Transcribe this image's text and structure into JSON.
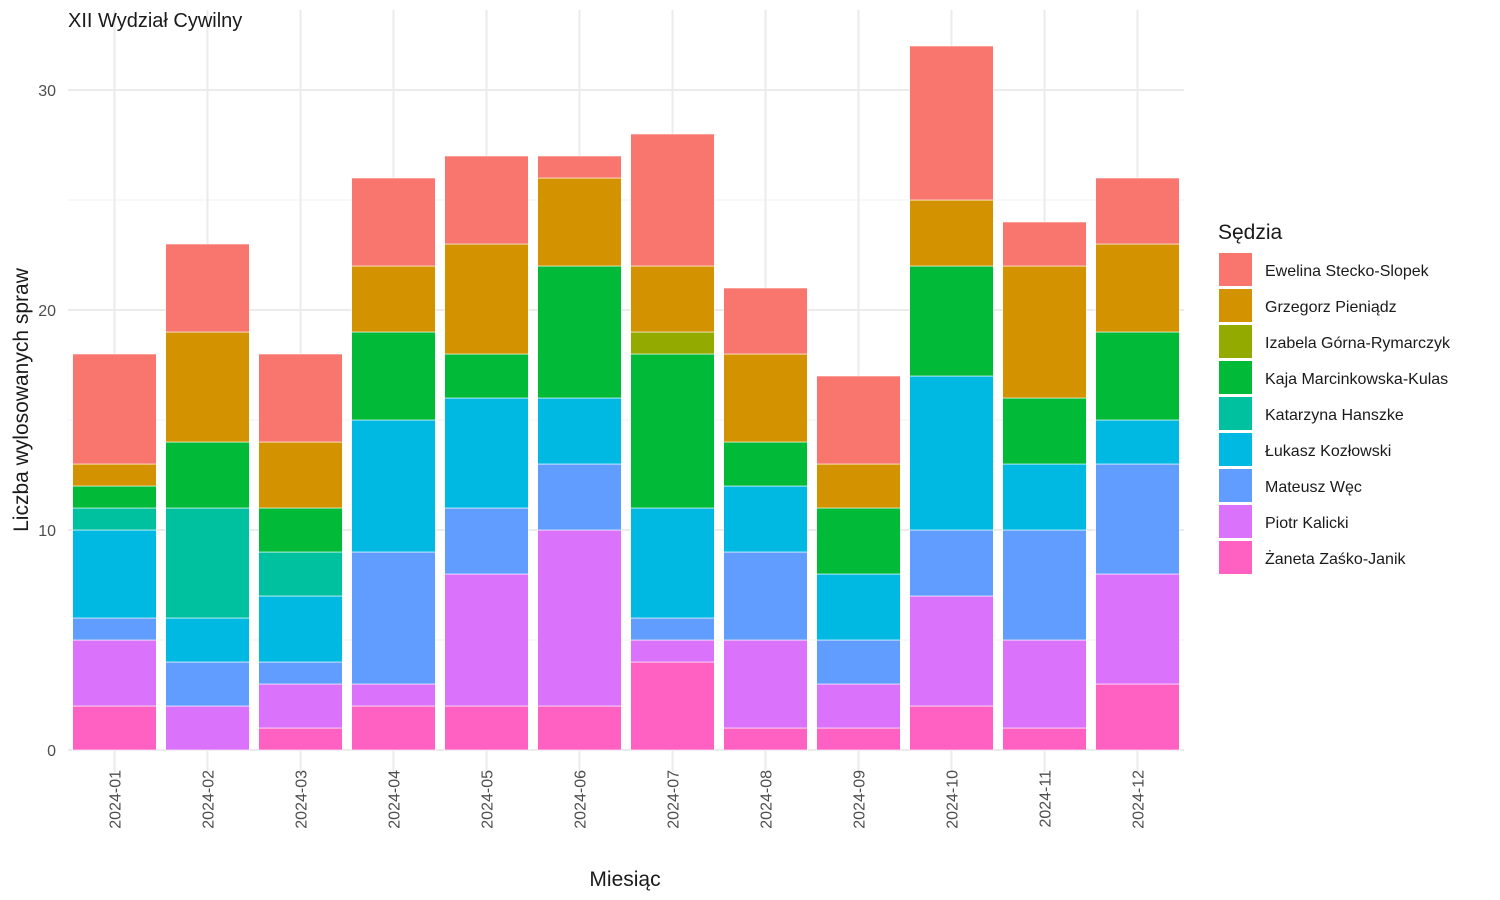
{
  "chart_data": {
    "type": "bar",
    "stacked": true,
    "title": "XII Wydział Cywilny",
    "xlabel": "Miesiąc",
    "ylabel": "Liczba wylosowanych spraw",
    "ylim": [
      0,
      33
    ],
    "yticks": [
      0,
      10,
      20,
      30
    ],
    "grid": true,
    "legend_position": "right",
    "legend_title": "Sędzia",
    "categories": [
      "2024-01",
      "2024-02",
      "2024-03",
      "2024-04",
      "2024-05",
      "2024-06",
      "2024-07",
      "2024-08",
      "2024-09",
      "2024-10",
      "2024-11",
      "2024-12"
    ],
    "series": [
      {
        "name": "Ewelina Stecko-Slopek",
        "color": "#F8766D",
        "values": [
          5,
          4,
          4,
          4,
          4,
          1,
          6,
          3,
          4,
          7,
          2,
          3
        ]
      },
      {
        "name": "Grzegorz Pieniądz",
        "color": "#D39200",
        "values": [
          1,
          5,
          3,
          3,
          5,
          4,
          3,
          4,
          2,
          3,
          6,
          4
        ]
      },
      {
        "name": "Izabela Górna-Rymarczyk",
        "color": "#93AA00",
        "values": [
          0,
          0,
          0,
          0,
          0,
          0,
          1,
          0,
          0,
          0,
          0,
          0
        ]
      },
      {
        "name": "Kaja Marcinkowska-Kulas",
        "color": "#00BA38",
        "values": [
          1,
          3,
          2,
          4,
          2,
          6,
          7,
          2,
          3,
          5,
          3,
          4
        ]
      },
      {
        "name": "Katarzyna Hanszke",
        "color": "#00C19F",
        "values": [
          1,
          5,
          2,
          0,
          0,
          0,
          0,
          0,
          0,
          0,
          0,
          0
        ]
      },
      {
        "name": "Łukasz Kozłowski",
        "color": "#00B9E3",
        "values": [
          4,
          2,
          3,
          6,
          5,
          3,
          5,
          3,
          3,
          7,
          3,
          2
        ]
      },
      {
        "name": "Mateusz Węc",
        "color": "#619CFF",
        "values": [
          1,
          2,
          1,
          6,
          3,
          3,
          1,
          4,
          2,
          3,
          5,
          5
        ]
      },
      {
        "name": "Piotr Kalicki",
        "color": "#DB72FB",
        "values": [
          3,
          2,
          2,
          1,
          6,
          8,
          1,
          4,
          2,
          5,
          4,
          5
        ]
      },
      {
        "name": "Żaneta Zaśko-Janik",
        "color": "#FF61C3",
        "values": [
          2,
          0,
          1,
          2,
          2,
          2,
          4,
          1,
          1,
          2,
          1,
          3
        ]
      }
    ]
  }
}
